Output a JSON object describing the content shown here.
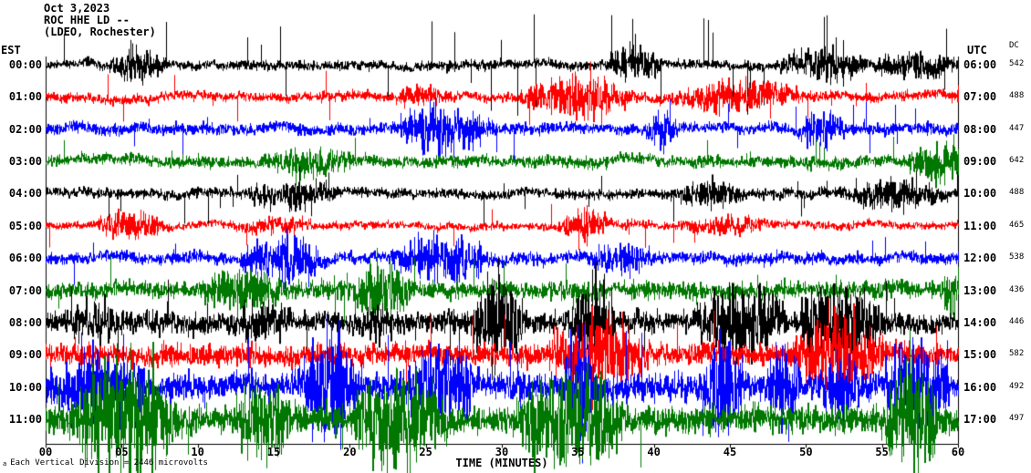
{
  "title": {
    "line1": "Oct 3,2023",
    "line2": "ROC HHE LD --",
    "line3": "(LDEO, Rochester)"
  },
  "axes": {
    "left_label": "EST",
    "right_label": "UTC",
    "dc_label": "DC",
    "x_label": "TIME (MINUTES)",
    "x_ticks": [
      "00",
      "05",
      "10",
      "15",
      "20",
      "25",
      "30",
      "35",
      "40",
      "45",
      "50",
      "55",
      "60"
    ]
  },
  "footer": {
    "marker": "a",
    "text": "Each Vertical Division = 2446 microvolts"
  },
  "chart_data": {
    "type": "line",
    "subtype": "seismogram-helicorder",
    "title": "ROC HHE LD -- (LDEO, Rochester) Oct 3,2023",
    "xlabel": "TIME (MINUTES)",
    "x_range_minutes": [
      0,
      60
    ],
    "minutes_per_row": 60,
    "row_interval": "1 hour",
    "trace_color_cycle": [
      "#000000",
      "#ff0000",
      "#0000ff",
      "#007700"
    ],
    "rows": [
      {
        "est": "00:00",
        "utc": "06:00",
        "dc": "542",
        "color": "#000000",
        "amp": 5,
        "spike_p": 0.025,
        "spike_amp": 40,
        "burst_p": 0.004
      },
      {
        "est": "01:00",
        "utc": "07:00",
        "dc": "488",
        "color": "#ff0000",
        "amp": 5,
        "spike_p": 0.015,
        "spike_amp": 24,
        "burst_p": 0.004
      },
      {
        "est": "02:00",
        "utc": "08:00",
        "dc": "447",
        "color": "#0000ff",
        "amp": 6,
        "spike_p": 0.015,
        "spike_amp": 28,
        "burst_p": 0.004
      },
      {
        "est": "03:00",
        "utc": "09:00",
        "dc": "642",
        "color": "#007700",
        "amp": 6,
        "spike_p": 0.01,
        "spike_amp": 20,
        "burst_p": 0.004
      },
      {
        "est": "04:00",
        "utc": "10:00",
        "dc": "488",
        "color": "#000000",
        "amp": 5,
        "spike_p": 0.02,
        "spike_amp": 26,
        "burst_p": 0.004
      },
      {
        "est": "05:00",
        "utc": "11:00",
        "dc": "465",
        "color": "#ff0000",
        "amp": 4,
        "spike_p": 0.012,
        "spike_amp": 18,
        "burst_p": 0.004
      },
      {
        "est": "06:00",
        "utc": "12:00",
        "dc": "538",
        "color": "#0000ff",
        "amp": 6,
        "spike_p": 0.012,
        "spike_amp": 24,
        "burst_p": 0.005
      },
      {
        "est": "07:00",
        "utc": "13:00",
        "dc": "436",
        "color": "#007700",
        "amp": 9,
        "spike_p": 0.018,
        "spike_amp": 28,
        "burst_p": 0.007
      },
      {
        "est": "08:00",
        "utc": "14:00",
        "dc": "446",
        "color": "#000000",
        "amp": 11,
        "spike_p": 0.02,
        "spike_amp": 34,
        "burst_p": 0.008
      },
      {
        "est": "09:00",
        "utc": "15:00",
        "dc": "582",
        "color": "#ff0000",
        "amp": 11,
        "spike_p": 0.02,
        "spike_amp": 38,
        "burst_p": 0.008
      },
      {
        "est": "10:00",
        "utc": "16:00",
        "dc": "492",
        "color": "#0000ff",
        "amp": 14,
        "spike_p": 0.02,
        "spike_amp": 44,
        "burst_p": 0.009
      },
      {
        "est": "11:00",
        "utc": "17:00",
        "dc": "497",
        "color": "#007700",
        "amp": 14,
        "spike_p": 0.015,
        "spike_amp": 40,
        "burst_p": 0.009
      }
    ]
  }
}
